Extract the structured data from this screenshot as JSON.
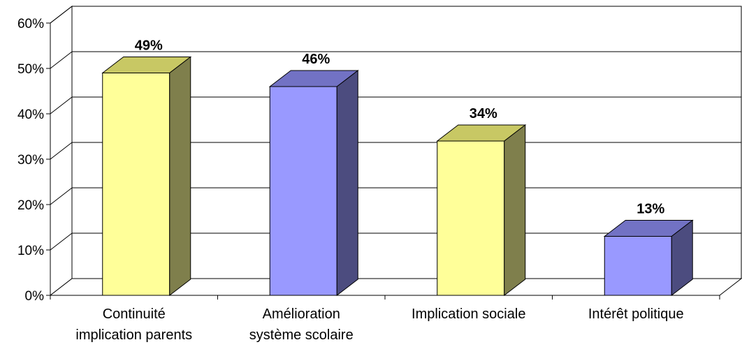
{
  "chart_data": {
    "type": "bar",
    "categories": [
      [
        "Continuité",
        "implication parents"
      ],
      [
        "Amélioration",
        "système scolaire"
      ],
      [
        "Implication sociale"
      ],
      [
        "Intérêt politique"
      ]
    ],
    "values": [
      49,
      46,
      34,
      13
    ],
    "data_labels": [
      "49%",
      "46%",
      "34%",
      "13%"
    ],
    "ylim": [
      0,
      60
    ],
    "yticks": [
      0,
      10,
      20,
      30,
      40,
      50,
      60
    ],
    "ytick_labels": [
      "0%",
      "10%",
      "20%",
      "30%",
      "40%",
      "50%",
      "60%"
    ],
    "title": "",
    "xlabel": "",
    "ylabel": "",
    "grid": true,
    "three_d": true,
    "bar_colors": [
      {
        "front": "#FFFF99",
        "top": "#C8C864",
        "side": "#7F7F4C"
      },
      {
        "front": "#9999FF",
        "top": "#7272C4",
        "side": "#4C4C7F"
      },
      {
        "front": "#FFFF99",
        "top": "#C8C864",
        "side": "#7F7F4C"
      },
      {
        "front": "#9999FF",
        "top": "#7272C4",
        "side": "#4C4C7F"
      }
    ]
  }
}
